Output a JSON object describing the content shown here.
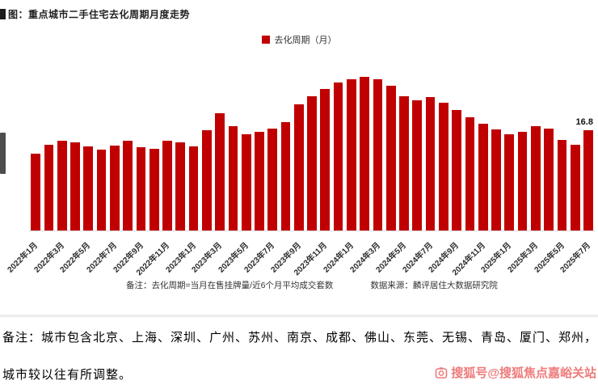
{
  "header": {
    "title": "图：重点城市二手住宅去化周期月度走势"
  },
  "chart_data": {
    "type": "bar",
    "title": "重点城市二手住宅去化周期月度走势",
    "legend_label": "去化周期（月）",
    "legend_position": "top-center",
    "bar_color": "#C00000",
    "grid": false,
    "ylim": [
      0,
      27
    ],
    "tick_label_every": 2,
    "categories": [
      "2022年1月",
      "2022年2月",
      "2022年3月",
      "2022年4月",
      "2022年5月",
      "2022年6月",
      "2022年7月",
      "2022年8月",
      "2022年9月",
      "2022年10月",
      "2022年11月",
      "2022年12月",
      "2023年1月",
      "2023年2月",
      "2023年3月",
      "2023年4月",
      "2023年5月",
      "2023年6月",
      "2023年7月",
      "2023年8月",
      "2023年9月",
      "2023年10月",
      "2023年11月",
      "2023年12月",
      "2024年1月",
      "2024年2月",
      "2024年3月",
      "2024年4月",
      "2024年5月",
      "2024年6月",
      "2024年7月",
      "2024年8月",
      "2024年9月",
      "2024年10月",
      "2024年11月",
      "2024年12月",
      "2025年1月",
      "2025年2月",
      "2025年3月",
      "2025年4月",
      "2025年5月",
      "2025年6月",
      "2025年7月"
    ],
    "values": [
      12.8,
      14.3,
      15.0,
      14.7,
      14.1,
      13.5,
      14.2,
      15.0,
      13.9,
      13.6,
      15.0,
      14.7,
      14.1,
      16.8,
      19.6,
      17.4,
      16.1,
      16.5,
      17.0,
      18.1,
      21.0,
      22.4,
      23.6,
      24.7,
      25.2,
      25.6,
      25.3,
      24.1,
      22.4,
      21.8,
      22.3,
      21.3,
      20.1,
      18.9,
      17.8,
      16.9,
      16.1,
      16.5,
      17.4,
      17.0,
      15.1,
      14.3,
      16.8
    ],
    "last_value_label": "16.8",
    "footnote_left": "备注：去化周期=当月在售挂牌量/近6个月平均成交套数",
    "footnote_right": "数据来源：麟评居住大数据研究院"
  },
  "footer": {
    "note_line1": "备注：城市包含北京、上海、深圳、广州、苏州、南京、成都、佛山、东莞、无锡、青岛、厦门、郑州，",
    "note_line2": "城市较以往有所调整。",
    "watermark": "搜狐号@搜狐焦点嘉峪关站"
  },
  "colors": {
    "bar": "#C00000",
    "watermark": "#EF7B7B",
    "title_text": "#222222"
  },
  "icons": {
    "title_marker": "square-bullet-icon",
    "watermark_logo": "sohu-logo-icon"
  }
}
